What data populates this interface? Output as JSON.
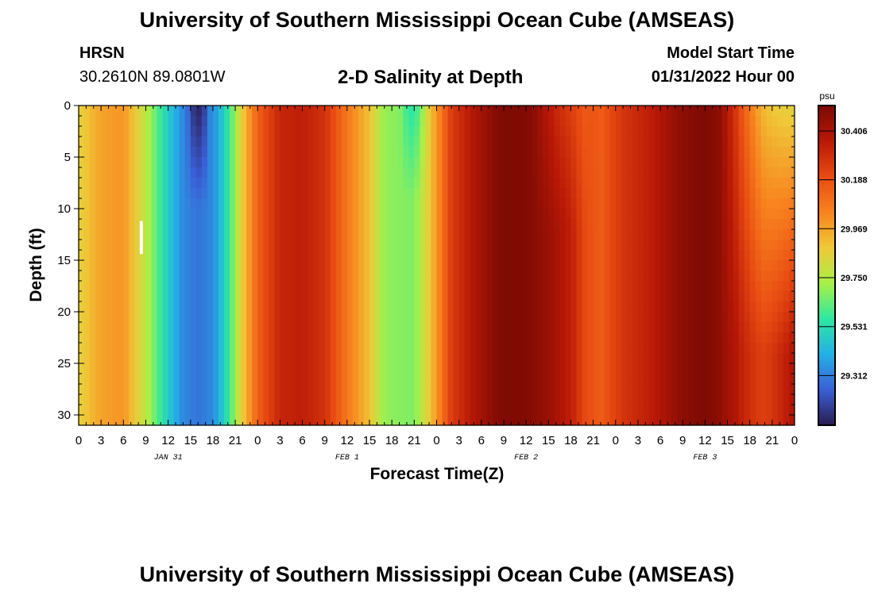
{
  "header": {
    "title": "University of Southern Mississippi Ocean Cube (AMSEAS)",
    "station": "HRSN",
    "coords": "30.2610N  89.0801W",
    "plot_title": "2-D Salinity at Depth",
    "model_start_label": "Model Start Time",
    "model_start_value": "01/31/2022 Hour 00"
  },
  "footer": {
    "title": "University of Southern Mississippi Ocean Cube (AMSEAS)"
  },
  "colors": {
    "ramp": [
      "#2a1c4e",
      "#3a5fd6",
      "#24b0e6",
      "#2ee8a0",
      "#a8f048",
      "#f0c838",
      "#f8821e",
      "#e84a12",
      "#b81806",
      "#7a0a04"
    ]
  },
  "chart_data": {
    "type": "heatmap",
    "xlabel": "Forecast Time(Z)",
    "ylabel": "Depth (ft)",
    "colorbar_unit": "psu",
    "colorbar_ticks": [
      29.312,
      29.531,
      29.75,
      29.969,
      30.188,
      30.406
    ],
    "colorbar_range": [
      29.09,
      30.52
    ],
    "x_tick_labels": [
      "0",
      "3",
      "6",
      "9",
      "12",
      "15",
      "18",
      "21",
      "0",
      "3",
      "6",
      "9",
      "12",
      "15",
      "18",
      "21",
      "0",
      "3",
      "6",
      "9",
      "12",
      "15",
      "18",
      "21",
      "0",
      "3",
      "6",
      "9",
      "12",
      "15",
      "18",
      "21",
      "0"
    ],
    "date_labels": [
      {
        "label": "JAN 31",
        "hour": 12
      },
      {
        "label": "FEB 1",
        "hour": 36
      },
      {
        "label": "FEB 2",
        "hour": 60
      },
      {
        "label": "FEB 3",
        "hour": 84
      }
    ],
    "xlim": [
      0,
      96
    ],
    "ylim": [
      0,
      31
    ],
    "y_ticks": [
      0,
      5,
      10,
      15,
      20,
      25,
      30
    ],
    "current_time_hour": 8.4,
    "time_profile": {
      "hours": [
        0,
        3,
        6,
        9,
        12,
        14,
        16,
        18,
        20,
        22,
        24,
        27,
        30,
        33,
        36,
        39,
        41,
        45,
        47,
        50,
        54,
        56,
        57,
        60,
        63,
        66,
        68,
        70,
        73,
        76,
        78,
        80,
        82,
        84,
        86,
        88,
        90,
        92,
        94,
        96
      ],
      "values": [
        29.85,
        29.97,
        30.0,
        29.77,
        29.48,
        29.33,
        29.29,
        29.33,
        29.55,
        29.88,
        30.14,
        30.32,
        30.34,
        30.28,
        30.07,
        29.9,
        29.7,
        29.67,
        29.87,
        30.25,
        30.42,
        30.49,
        30.51,
        30.5,
        30.44,
        30.34,
        30.2,
        30.15,
        30.27,
        30.33,
        30.38,
        30.45,
        30.49,
        30.51,
        30.47,
        30.38,
        30.22,
        30.0,
        29.92,
        29.82
      ]
    },
    "depth_anomalies": [
      {
        "hour": 16.0,
        "hour_halfwidth": 1.6,
        "depth_max": 10,
        "delta": -0.18
      },
      {
        "hour": 45.0,
        "hour_halfwidth": 2.0,
        "depth_max": 9,
        "delta": -0.12
      },
      {
        "hour": 65.0,
        "hour_halfwidth": 4.0,
        "depth_max": 12,
        "delta": -0.1
      }
    ],
    "end_gradient": {
      "start_hour": 86,
      "end_hour": 96,
      "surface_value": 29.85,
      "bottom_value": 30.4,
      "depth_scale": 24
    }
  }
}
